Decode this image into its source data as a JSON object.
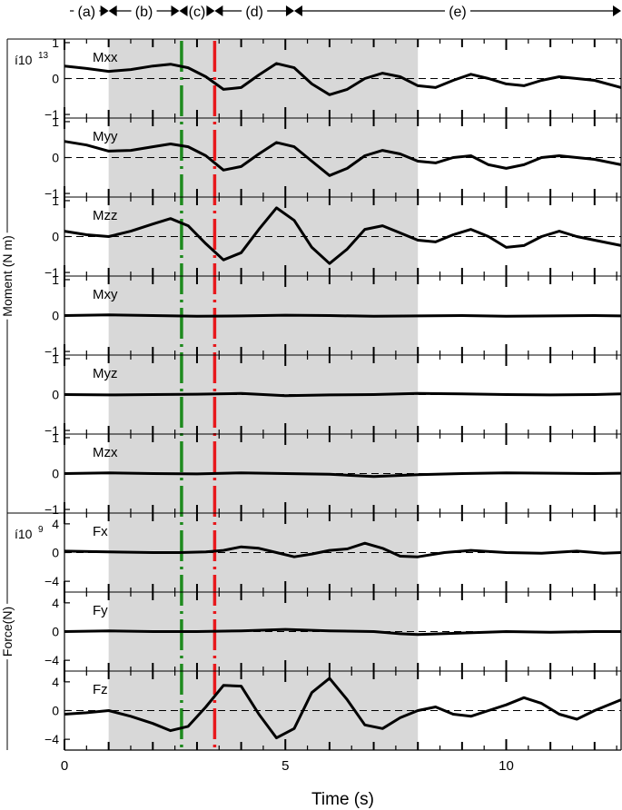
{
  "chart_data": {
    "type": "line",
    "xlabel": "Time (s)",
    "xlim": [
      0,
      12.6
    ],
    "x_ticks": [
      "0",
      "5",
      "10"
    ],
    "grid": false,
    "legend": "none",
    "phases": [
      {
        "label": "(a)",
        "start": 0,
        "end": 1
      },
      {
        "label": "(b)",
        "start": 1,
        "end": 2.6
      },
      {
        "label": "(c)",
        "start": 2.6,
        "end": 3.4
      },
      {
        "label": "(d)",
        "start": 3.4,
        "end": 5.2
      },
      {
        "label": "(e)",
        "start": 5.2,
        "end": 12.6
      }
    ],
    "shaded_region": [
      1,
      8
    ],
    "vertical_markers": [
      {
        "x": 2.65,
        "color": "#1e8a1e"
      },
      {
        "x": 3.4,
        "color": "#e8181c"
      }
    ],
    "groups": [
      {
        "ylabel": "Moment (N m)",
        "scale_label": "10",
        "scale_exp": "13",
        "prefix": "í"
      },
      {
        "ylabel": "Force(N)",
        "scale_label": "10",
        "scale_exp": "9",
        "prefix": "í"
      }
    ],
    "panels": [
      {
        "name": "Mxx",
        "ylim": [
          -1.1,
          1.1
        ],
        "yticks": [
          "1",
          "0",
          "−1"
        ],
        "tick_vals": [
          1,
          0,
          -1
        ],
        "x": [
          0,
          0.5,
          1,
          1.5,
          2,
          2.4,
          2.8,
          3.2,
          3.6,
          4,
          4.4,
          4.8,
          5.2,
          5.6,
          6,
          6.4,
          6.8,
          7.2,
          7.6,
          8,
          8.4,
          8.8,
          9.2,
          9.6,
          10,
          10.4,
          10.8,
          11.2,
          11.6,
          12,
          12.6
        ],
        "values": [
          0.35,
          0.28,
          0.2,
          0.25,
          0.35,
          0.4,
          0.3,
          0.05,
          -0.3,
          -0.25,
          0.1,
          0.42,
          0.3,
          -0.15,
          -0.45,
          -0.3,
          0.0,
          0.15,
          0.05,
          -0.2,
          -0.25,
          -0.05,
          0.12,
          0.0,
          -0.15,
          -0.2,
          -0.05,
          0.05,
          0.0,
          -0.05,
          -0.25
        ]
      },
      {
        "name": "Myy",
        "ylim": [
          -1.1,
          1.1
        ],
        "yticks": [
          "1",
          "0",
          "−1"
        ],
        "tick_vals": [
          1,
          0,
          -1
        ],
        "x": [
          0,
          0.5,
          1,
          1.5,
          2,
          2.4,
          2.8,
          3.2,
          3.6,
          4,
          4.4,
          4.8,
          5.2,
          5.6,
          6,
          6.4,
          6.8,
          7.2,
          7.6,
          8,
          8.4,
          8.8,
          9.2,
          9.6,
          10,
          10.4,
          10.8,
          11.2,
          11.6,
          12,
          12.6
        ],
        "values": [
          0.45,
          0.35,
          0.18,
          0.2,
          0.3,
          0.38,
          0.3,
          0.05,
          -0.35,
          -0.25,
          0.1,
          0.42,
          0.3,
          -0.1,
          -0.5,
          -0.3,
          0.05,
          0.2,
          0.1,
          -0.1,
          -0.15,
          0.0,
          0.05,
          -0.2,
          -0.3,
          -0.2,
          0.0,
          0.05,
          0.0,
          -0.05,
          -0.2
        ]
      },
      {
        "name": "Mzz",
        "ylim": [
          -1.1,
          1.1
        ],
        "yticks": [
          "1",
          "0",
          "−1"
        ],
        "tick_vals": [
          1,
          0,
          -1
        ],
        "x": [
          0,
          0.5,
          1,
          1.5,
          2,
          2.4,
          2.8,
          3.2,
          3.6,
          4,
          4.4,
          4.8,
          5.2,
          5.6,
          6,
          6.4,
          6.8,
          7.2,
          7.6,
          8,
          8.4,
          8.8,
          9.2,
          9.6,
          10,
          10.4,
          10.8,
          11.2,
          11.6,
          12,
          12.6
        ],
        "values": [
          0.15,
          0.05,
          0.0,
          0.15,
          0.35,
          0.5,
          0.3,
          -0.2,
          -0.65,
          -0.45,
          0.2,
          0.8,
          0.45,
          -0.3,
          -0.75,
          -0.35,
          0.2,
          0.3,
          0.1,
          -0.1,
          -0.15,
          0.05,
          0.2,
          0.0,
          -0.3,
          -0.25,
          0.0,
          0.15,
          0.0,
          -0.1,
          -0.25
        ]
      },
      {
        "name": "Mxy",
        "ylim": [
          -1.1,
          1.1
        ],
        "yticks": [
          "1",
          "0",
          "−1"
        ],
        "tick_vals": [
          1,
          0,
          -1
        ],
        "x": [
          0,
          1,
          2,
          3,
          4,
          5,
          6,
          7,
          8,
          9,
          10,
          11,
          12,
          12.6
        ],
        "values": [
          0.0,
          0.02,
          0.0,
          -0.02,
          -0.01,
          0.01,
          0.0,
          -0.02,
          -0.01,
          0.0,
          -0.02,
          -0.01,
          0.0,
          -0.01
        ]
      },
      {
        "name": "Myz",
        "ylim": [
          -1.1,
          1.1
        ],
        "yticks": [
          "1",
          "0",
          "−1"
        ],
        "tick_vals": [
          1,
          0,
          -1
        ],
        "x": [
          0,
          1,
          2,
          3,
          4,
          5,
          6,
          7,
          8,
          9,
          10,
          11,
          12,
          12.6
        ],
        "values": [
          0.0,
          -0.01,
          0.0,
          0.01,
          0.03,
          -0.03,
          -0.01,
          0.0,
          0.03,
          0.02,
          0.0,
          -0.01,
          0.0,
          0.02
        ]
      },
      {
        "name": "Mzx",
        "ylim": [
          -1.1,
          1.1
        ],
        "yticks": [
          "1",
          "0",
          "−1"
        ],
        "tick_vals": [
          1,
          0,
          -1
        ],
        "x": [
          0,
          1,
          2,
          3,
          4,
          5,
          6,
          7,
          8,
          9,
          10,
          11,
          12,
          12.6
        ],
        "values": [
          0.0,
          0.02,
          0.0,
          -0.01,
          0.02,
          0.0,
          -0.02,
          -0.08,
          -0.03,
          0.0,
          0.02,
          0.01,
          0.0,
          0.01
        ]
      },
      {
        "name": "Fx",
        "ylim": [
          -5.5,
          5.5
        ],
        "yticks": [
          "4",
          "0",
          "−4"
        ],
        "tick_vals": [
          4,
          0,
          -4
        ],
        "x": [
          0,
          1,
          2,
          2.6,
          3.2,
          3.6,
          4,
          4.4,
          4.8,
          5.2,
          5.6,
          6,
          6.4,
          6.8,
          7.2,
          7.6,
          8,
          8.6,
          9.2,
          10,
          10.8,
          11.6,
          12.2,
          12.6
        ],
        "values": [
          0.2,
          0.1,
          0.0,
          0.0,
          0.1,
          0.3,
          0.8,
          0.6,
          0.0,
          -0.6,
          -0.2,
          0.3,
          0.5,
          1.3,
          0.6,
          -0.5,
          -0.6,
          0.0,
          0.3,
          0.0,
          -0.1,
          0.2,
          -0.1,
          0.0
        ]
      },
      {
        "name": "Fy",
        "ylim": [
          -5.5,
          5.5
        ],
        "yticks": [
          "4",
          "0",
          "−4"
        ],
        "tick_vals": [
          4,
          0,
          -4
        ],
        "x": [
          0,
          1,
          2,
          3,
          4,
          5,
          6,
          7,
          7.6,
          8,
          9,
          10,
          11,
          12,
          12.6
        ],
        "values": [
          0.0,
          0.1,
          0.0,
          0.0,
          0.1,
          0.3,
          0.1,
          0.0,
          -0.3,
          -0.4,
          -0.2,
          0.0,
          -0.1,
          0.0,
          0.0
        ]
      },
      {
        "name": "Fz",
        "ylim": [
          -5.5,
          5.5
        ],
        "yticks": [
          "4",
          "0",
          "−4"
        ],
        "tick_vals": [
          4,
          0,
          -4
        ],
        "x": [
          0,
          0.5,
          1,
          1.5,
          2,
          2.4,
          2.8,
          3.2,
          3.6,
          4,
          4.4,
          4.8,
          5.2,
          5.6,
          6,
          6.4,
          6.8,
          7.2,
          7.6,
          8,
          8.4,
          8.8,
          9.2,
          9.6,
          10,
          10.4,
          10.8,
          11.2,
          11.6,
          12,
          12.6
        ],
        "values": [
          -0.5,
          -0.3,
          0.0,
          -0.8,
          -1.8,
          -2.8,
          -2.2,
          0.5,
          3.5,
          3.4,
          -0.5,
          -3.8,
          -2.5,
          2.5,
          4.5,
          1.5,
          -2.0,
          -2.5,
          -1.0,
          0.0,
          0.5,
          -0.5,
          -0.8,
          0.0,
          0.8,
          1.8,
          1.0,
          -0.5,
          -1.2,
          0.0,
          1.5
        ]
      }
    ]
  }
}
